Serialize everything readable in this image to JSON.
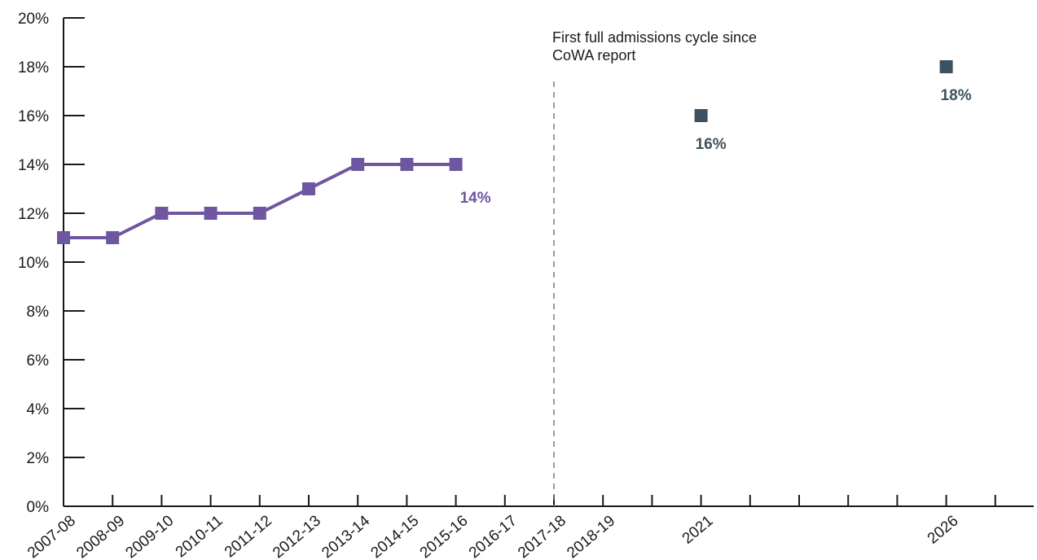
{
  "chart_data": {
    "type": "line",
    "title": "",
    "xlabel": "",
    "ylabel": "",
    "ylim": [
      0,
      20
    ],
    "y_ticks": [
      "0%",
      "2%",
      "4%",
      "6%",
      "8%",
      "10%",
      "12%",
      "14%",
      "16%",
      "18%",
      "20%"
    ],
    "x_tick_labels": [
      "2007-08",
      "2008-09",
      "2009-10",
      "2010-11",
      "2011-12",
      "2012-13",
      "2013-14",
      "2014-15",
      "2015-16",
      "2016-17",
      "2017-18",
      "2018-19",
      "",
      "2021",
      "",
      "",
      "",
      "",
      "2026",
      ""
    ],
    "series": [
      {
        "kind": "line",
        "color": "#6f56a0",
        "x": [
          "2007-08",
          "2008-09",
          "2009-10",
          "2010-11",
          "2011-12",
          "2012-13",
          "2013-14",
          "2014-15",
          "2015-16"
        ],
        "values": [
          11,
          11,
          12,
          12,
          12,
          13,
          14,
          14,
          14
        ],
        "end_label": "14%"
      },
      {
        "kind": "points",
        "color": "#3c5260",
        "x": [
          "2021",
          "2026"
        ],
        "values": [
          16,
          18
        ],
        "labels": [
          "16%",
          "18%"
        ]
      }
    ],
    "annotation": {
      "x": "2017-18",
      "line_style": "dashed",
      "text_lines": [
        "First full admissions cycle since",
        "CoWA report"
      ]
    },
    "grid": false
  }
}
